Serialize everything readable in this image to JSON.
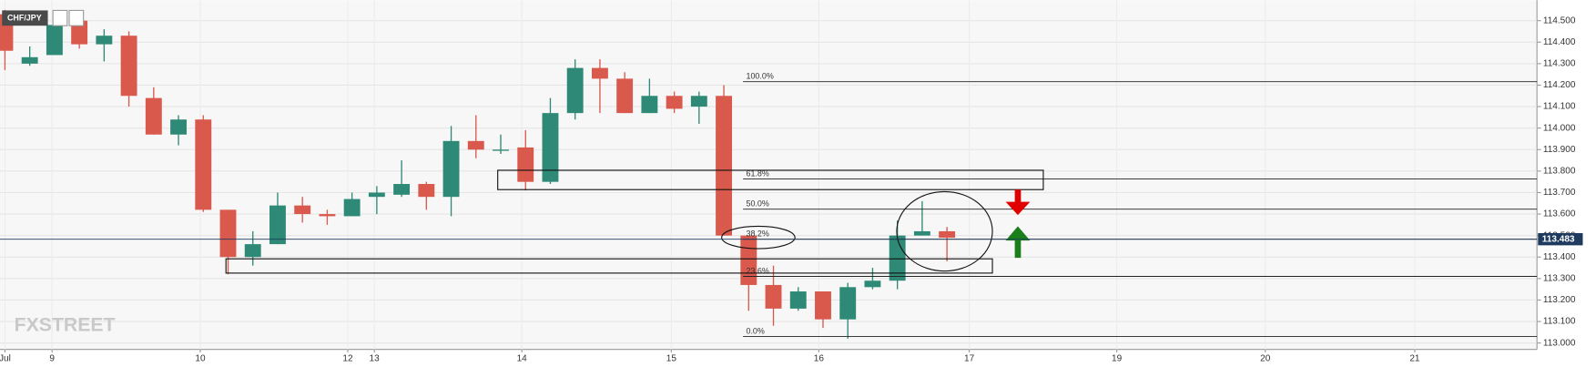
{
  "chart_data": {
    "type": "candlestick",
    "symbol": "CHF/JPY",
    "watermark": "FXSTREET",
    "up_color": "#2e8a76",
    "down_color": "#d9594c",
    "open": [
      114.53,
      114.3,
      114.34,
      114.5,
      114.39,
      114.43,
      114.14,
      113.97,
      114.04,
      113.62,
      113.4,
      113.46,
      113.64,
      113.6,
      113.59,
      113.68,
      113.69,
      113.74,
      113.68,
      113.94,
      113.9,
      113.91,
      113.75,
      114.07,
      114.28,
      114.23,
      114.07,
      114.15,
      114.1,
      114.15,
      113.5,
      113.27,
      113.16,
      113.24,
      113.11,
      113.26,
      113.29,
      113.5,
      113.52
    ],
    "high": [
      114.55,
      114.38,
      114.53,
      114.53,
      114.46,
      114.45,
      114.19,
      114.06,
      114.06,
      113.62,
      113.52,
      113.7,
      113.68,
      113.62,
      113.7,
      113.73,
      113.85,
      113.75,
      114.01,
      114.06,
      113.97,
      113.99,
      114.14,
      114.32,
      114.32,
      114.26,
      114.23,
      114.17,
      114.17,
      114.2,
      113.5,
      113.36,
      113.26,
      113.24,
      113.28,
      113.35,
      113.57,
      113.66,
      113.54
    ],
    "low": [
      114.27,
      114.29,
      114.34,
      114.37,
      114.31,
      114.1,
      113.97,
      113.92,
      113.61,
      113.32,
      113.36,
      113.46,
      113.56,
      113.55,
      113.59,
      113.6,
      113.68,
      113.62,
      113.59,
      113.86,
      113.88,
      113.71,
      113.74,
      114.04,
      114.07,
      114.07,
      114.07,
      114.07,
      114.02,
      113.5,
      113.15,
      113.08,
      113.15,
      113.07,
      113.02,
      113.25,
      113.25,
      113.5,
      113.38
    ],
    "close": [
      114.36,
      114.33,
      114.48,
      114.39,
      114.43,
      114.15,
      113.97,
      114.04,
      113.62,
      113.4,
      113.46,
      113.64,
      113.6,
      113.59,
      113.67,
      113.7,
      113.74,
      113.68,
      113.94,
      113.9,
      113.9,
      113.75,
      114.07,
      114.28,
      114.23,
      114.07,
      114.15,
      114.09,
      114.15,
      113.5,
      113.27,
      113.16,
      113.24,
      113.11,
      113.26,
      113.29,
      113.5,
      113.52,
      113.49
    ],
    "xlim": [
      -0.2,
      61.8
    ],
    "xticks": [
      {
        "value": 0,
        "label": "Jul"
      },
      {
        "value": 1.9,
        "label": "9"
      },
      {
        "value": 7.88,
        "label": "10"
      },
      {
        "value": 13.83,
        "label": "12"
      },
      {
        "value": 14.9,
        "label": "13"
      },
      {
        "value": 20.85,
        "label": "14"
      },
      {
        "value": 26.88,
        "label": "15"
      },
      {
        "value": 32.83,
        "label": "16"
      },
      {
        "value": 38.9,
        "label": "17"
      },
      {
        "value": 44.85,
        "label": "19"
      },
      {
        "value": 50.84,
        "label": "20"
      },
      {
        "value": 56.87,
        "label": "21"
      }
    ],
    "ylim": [
      112.97,
      114.595
    ],
    "yticks": [
      {
        "value": 113.0,
        "label": "113.000"
      },
      {
        "value": 113.1,
        "label": "113.100"
      },
      {
        "value": 113.2,
        "label": "113.200"
      },
      {
        "value": 113.3,
        "label": "113.300"
      },
      {
        "value": 113.4,
        "label": "113.400"
      },
      {
        "value": 113.5,
        "label": "113.500"
      },
      {
        "value": 113.6,
        "label": "113.600"
      },
      {
        "value": 113.7,
        "label": "113.700"
      },
      {
        "value": 113.8,
        "label": "113.800"
      },
      {
        "value": 113.9,
        "label": "113.900"
      },
      {
        "value": 114.0,
        "label": "114.000"
      },
      {
        "value": 114.1,
        "label": "114.100"
      },
      {
        "value": 114.2,
        "label": "114.200"
      },
      {
        "value": 114.3,
        "label": "114.300"
      },
      {
        "value": 114.4,
        "label": "114.400"
      },
      {
        "value": 114.5,
        "label": "114.500"
      }
    ],
    "grid": true,
    "fib_levels": [
      {
        "label": "100.0%",
        "value": 114.216
      },
      {
        "label": "61.8%",
        "value": 113.763
      },
      {
        "label": "50.0%",
        "value": 113.623
      },
      {
        "label": "38.2%",
        "value": 113.483
      },
      {
        "label": "23.6%",
        "value": 113.31
      },
      {
        "label": "0.0%",
        "value": 113.03
      }
    ],
    "last_price": 113.483
  }
}
